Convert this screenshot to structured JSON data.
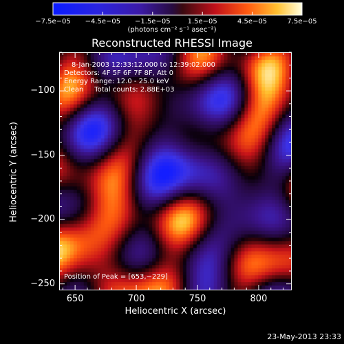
{
  "chart_data": {
    "type": "heatmap",
    "title": "Reconstructed RHESSI Image",
    "xlabel": "Heliocentric X (arcsec)",
    "ylabel": "Heliocentric Y (arcsec)",
    "xlim": [
      637,
      827
    ],
    "ylim": [
      -255,
      -70
    ],
    "x_ticks": [
      "650",
      "700",
      "750",
      "800"
    ],
    "x_tick_values": [
      650,
      700,
      750,
      800
    ],
    "y_ticks": [
      "−100",
      "−150",
      "−200",
      "−250"
    ],
    "y_tick_values": [
      -100,
      -150,
      -200,
      -250
    ],
    "colorbar": {
      "ticks": [
        "−7.5e−05",
        "−4.5e−05",
        "−1.5e−05",
        "1.5e−05",
        "4.5e−05",
        "7.5e−05"
      ],
      "tick_values": [
        -7.5e-05,
        -4.5e-05,
        -1.5e-05,
        1.5e-05,
        4.5e-05,
        7.5e-05
      ],
      "range": [
        -7.5e-05,
        7.5e-05
      ],
      "units": "(photons cm⁻² s⁻¹ asec⁻²)"
    },
    "annotations": {
      "time_range": "8-Jan-2003 12:33:12.000 to 12:39:02.000",
      "detectors": "Detectors: 4F 5F 6F 7F 8F, Att 0",
      "energy": "Energy Range: 12.0 - 25.0 keV",
      "clean": "Clean     Total counts: 2.88E+03",
      "peak": "Position of Peak = [653,−229]"
    },
    "peak_position": [
      653,
      -229
    ],
    "total_counts": 2880
  },
  "footer": {
    "date": "23-May-2013 23:33"
  }
}
